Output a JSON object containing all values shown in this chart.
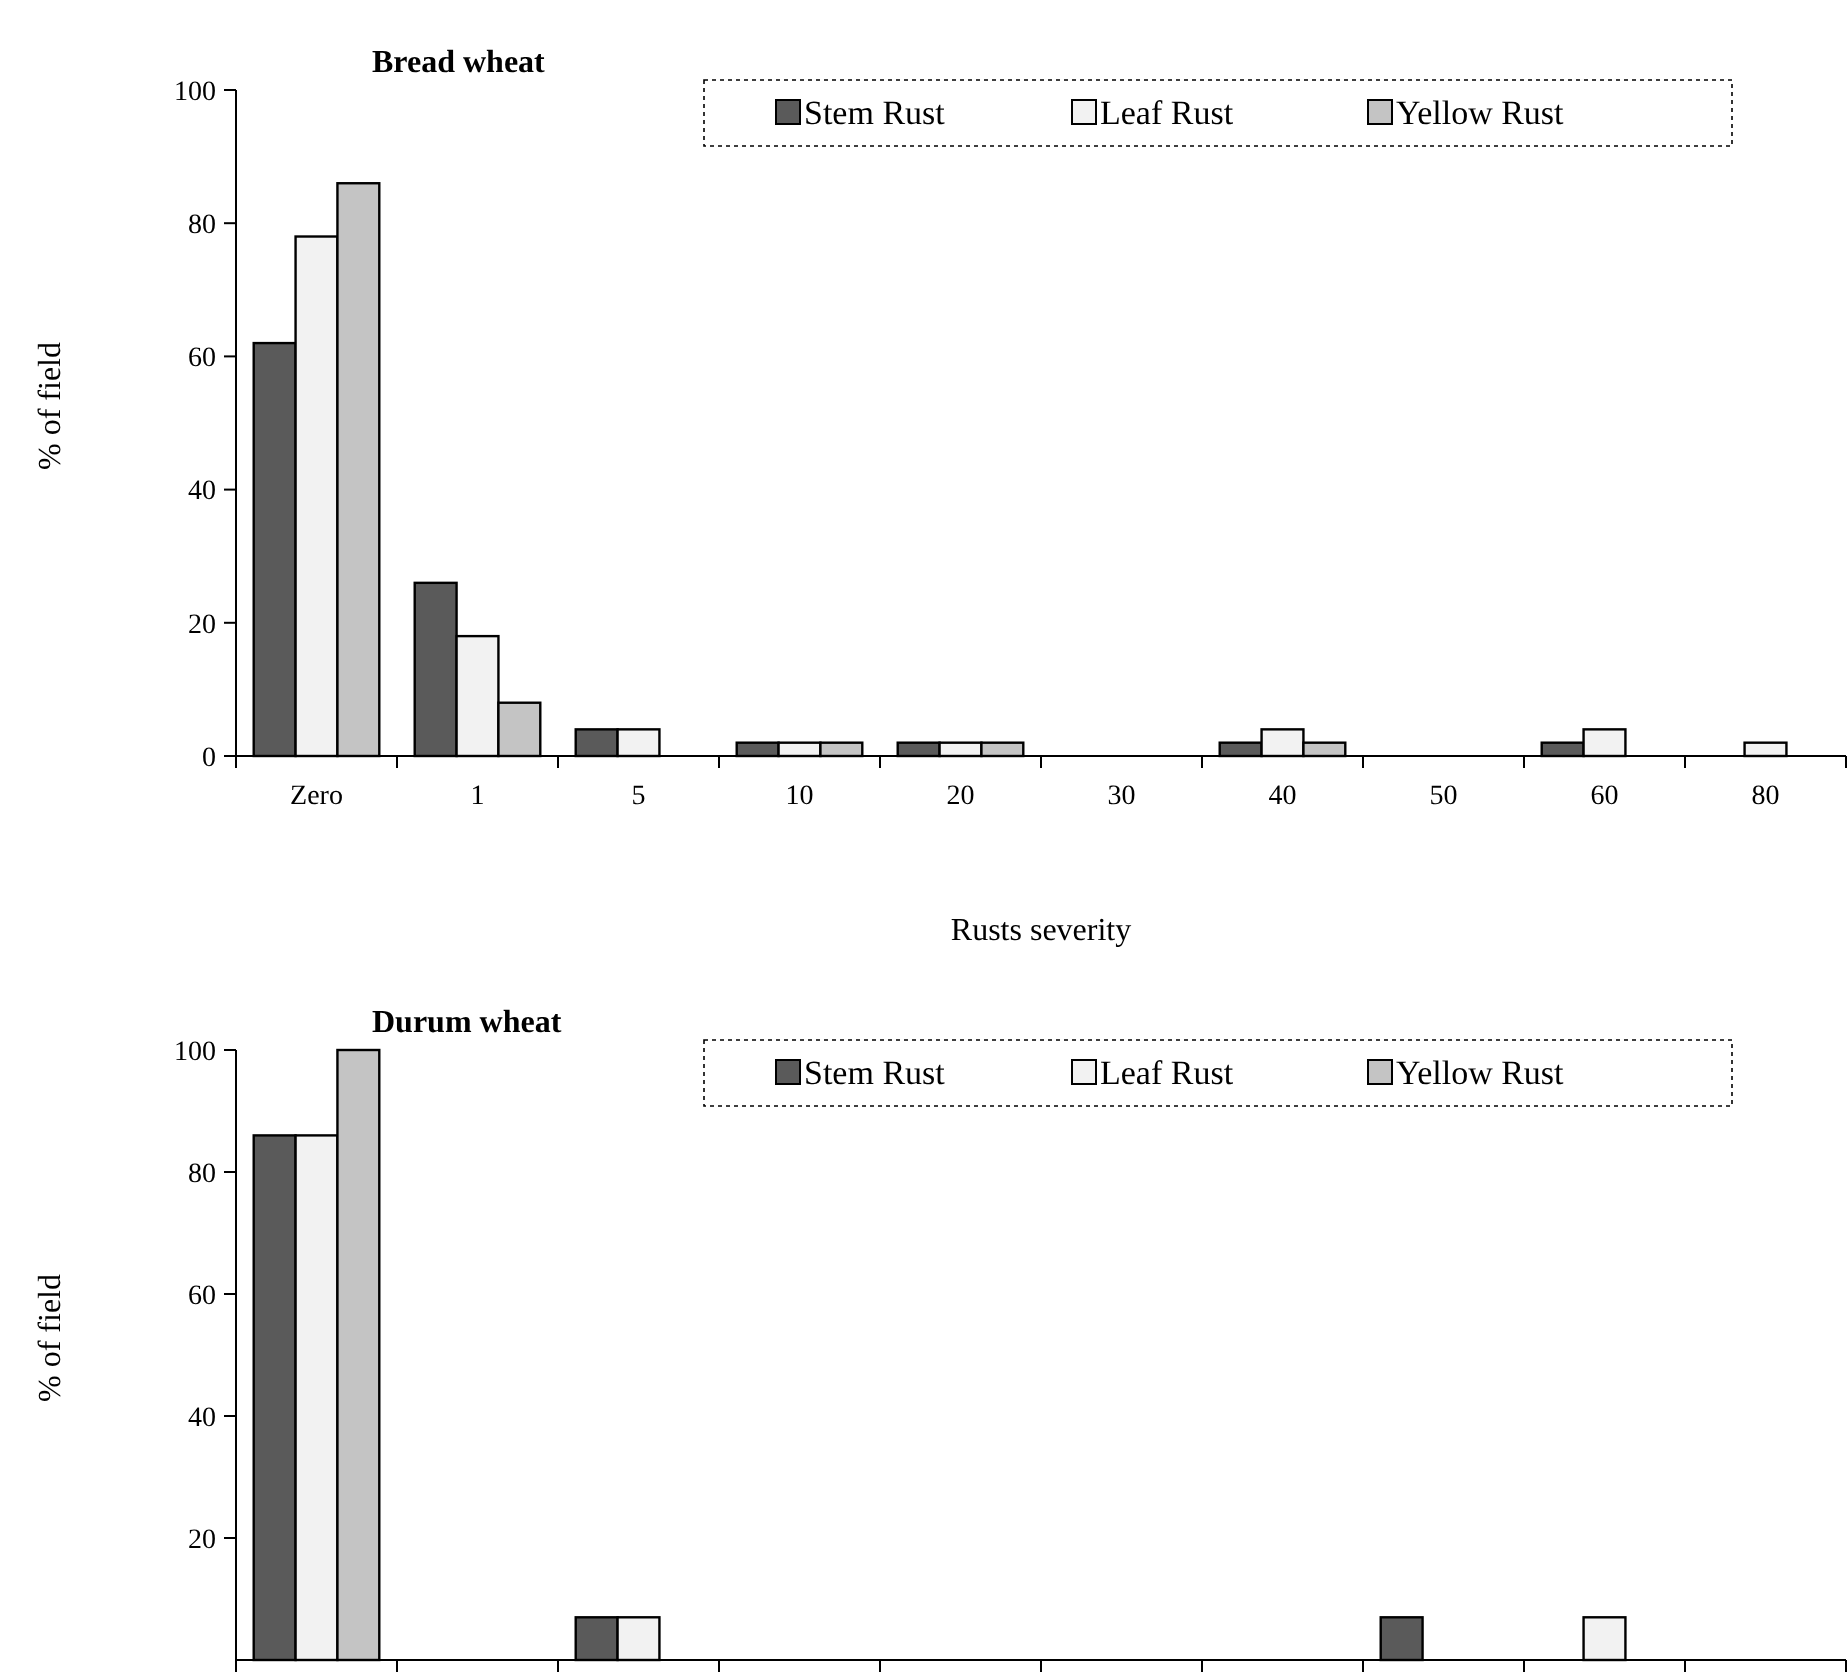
{
  "chart_data": [
    {
      "type": "bar",
      "title": "Bread wheat",
      "xlabel": "Rusts severity",
      "ylabel": "% of field",
      "categories": [
        "Zero",
        "1",
        "5",
        "10",
        "20",
        "30",
        "40",
        "50",
        "60",
        "80"
      ],
      "ylim": [
        0,
        100
      ],
      "yticks": [
        0,
        20,
        40,
        60,
        80,
        100
      ],
      "legend": "top right",
      "grid": false,
      "series": [
        {
          "name": "Stem Rust",
          "color": "#5a5a5a",
          "values": [
            62,
            26,
            4,
            2,
            2,
            null,
            2,
            null,
            2,
            null
          ]
        },
        {
          "name": "Leaf Rust",
          "color": "#f2f2f2",
          "values": [
            78,
            18,
            4,
            2,
            2,
            null,
            4,
            null,
            4,
            2
          ]
        },
        {
          "name": "Yellow Rust",
          "color": "#c4c4c4",
          "values": [
            86,
            8,
            null,
            2,
            2,
            null,
            2,
            null,
            null,
            null
          ]
        }
      ]
    },
    {
      "type": "bar",
      "title": "Durum wheat",
      "ylabel": "% of field",
      "categories": [
        null,
        null,
        null,
        null,
        null,
        null,
        null,
        null,
        null,
        null
      ],
      "ylim": [
        0,
        100
      ],
      "yticks": [
        20,
        40,
        60,
        80,
        100
      ],
      "tick_labels": "y",
      "legend": "top right",
      "grid": false,
      "series": [
        {
          "name": "Stem Rust",
          "color": "#5a5a5a",
          "values": [
            86,
            null,
            7,
            null,
            null,
            null,
            null,
            7,
            null,
            null
          ]
        },
        {
          "name": "Leaf Rust",
          "color": "#f2f2f2",
          "values": [
            86,
            null,
            7,
            null,
            null,
            null,
            null,
            null,
            7,
            null
          ]
        },
        {
          "name": "Yellow Rust",
          "color": "#c4c4c4",
          "values": [
            100,
            null,
            null,
            null,
            null,
            null,
            null,
            null,
            null,
            null
          ]
        }
      ]
    }
  ]
}
